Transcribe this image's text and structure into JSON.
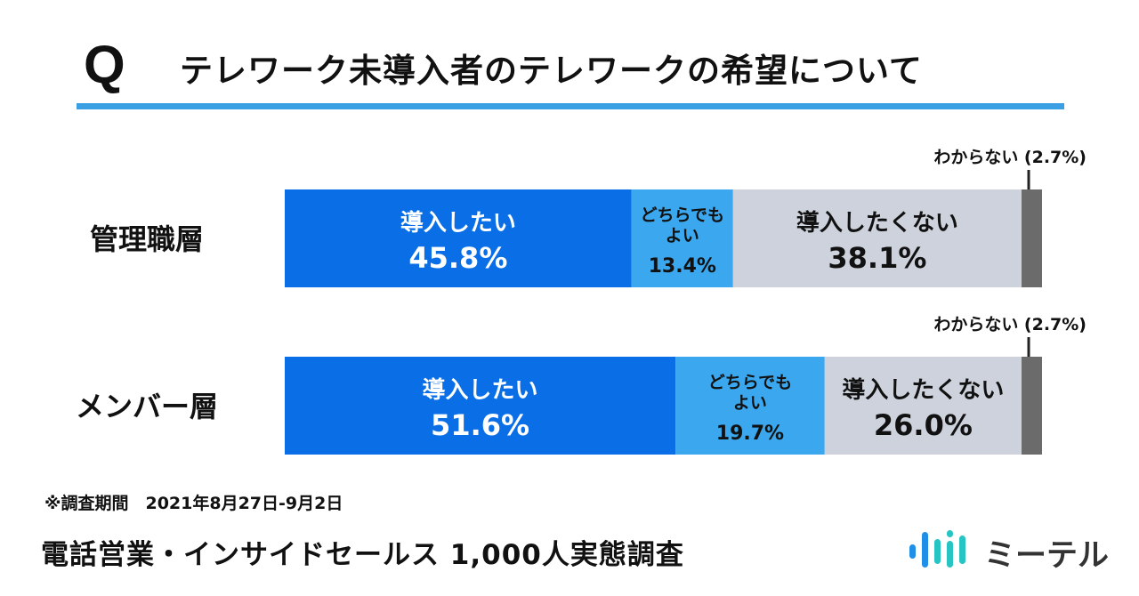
{
  "header": {
    "q_mark": "Q",
    "title": "テレワーク未導入者のテレワークの希望について"
  },
  "chart_data": {
    "type": "bar",
    "orientation": "horizontal",
    "stacked": true,
    "percent_scale": true,
    "categories": [
      "管理職層",
      "メンバー層"
    ],
    "segments": [
      {
        "label": [
          "導入したい"
        ],
        "color": "#0a6ee6",
        "text_color": "#ffffff",
        "values": [
          45.8,
          51.6
        ]
      },
      {
        "label": [
          "どちらでも",
          "よい"
        ],
        "color": "#3aa7ee",
        "text_color": "#111111",
        "values": [
          13.4,
          19.7
        ]
      },
      {
        "label": [
          "導入したくない"
        ],
        "color": "#cdd2dc",
        "text_color": "#111111",
        "values": [
          38.1,
          26.0
        ]
      },
      {
        "label": [
          "わからない"
        ],
        "color": "#6b6b6b",
        "text_color": "#111111",
        "values": [
          2.7,
          2.7
        ]
      }
    ],
    "value_labels": [
      [
        "45.8%",
        "13.4%",
        "38.1%",
        "2.7%"
      ],
      [
        "51.6%",
        "19.7%",
        "26.0%",
        "2.7%"
      ]
    ],
    "callouts": [
      "わからない (2.7%)",
      "わからない (2.7%)"
    ]
  },
  "footnote": "※調査期間　2021年8月27日-9月2日",
  "footer": {
    "title": "電話営業・インサイドセールス 1,000人実態調査",
    "brand": "ミーテル"
  },
  "colors": {
    "accent": "#3a9fe3",
    "brand_bar_blue": "#1f8fe8",
    "brand_bar_teal": "#27c4c4"
  }
}
